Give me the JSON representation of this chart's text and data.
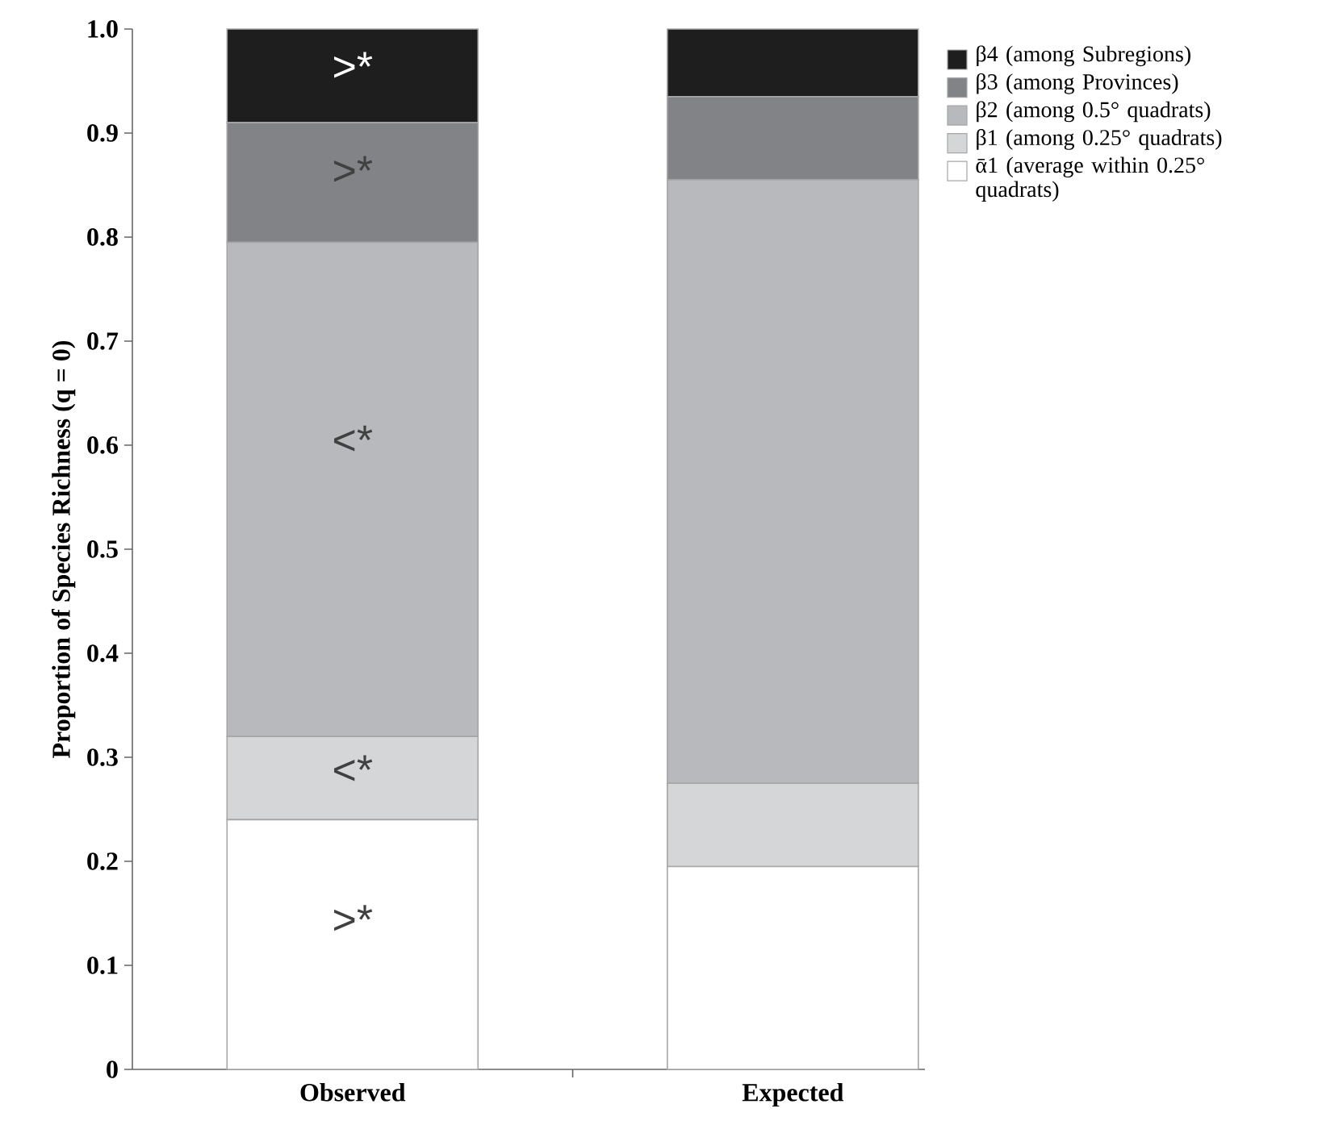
{
  "chart_data": {
    "type": "bar",
    "stacked": true,
    "ylabel": "Proportion of Species Richness (q = 0)",
    "categories": [
      "Observed",
      "Expected"
    ],
    "series": [
      {
        "name": "ᾱ1 (average within 0.25° quadrats)",
        "color": "#ffffff",
        "values": [
          0.24,
          0.195
        ]
      },
      {
        "name": "β1 (among 0.25° quadrats)",
        "color": "#d5d6d8",
        "values": [
          0.08,
          0.08
        ]
      },
      {
        "name": "β2 (among 0.5° quadrats)",
        "color": "#b8b9bc",
        "values": [
          0.475,
          0.58
        ]
      },
      {
        "name": "β3 (among Provinces)",
        "color": "#828386",
        "values": [
          0.115,
          0.08
        ]
      },
      {
        "name": "β4 (among Subregions)",
        "color": "#1e1e1e",
        "values": [
          0.09,
          0.065
        ]
      }
    ],
    "ylim": [
      0,
      1
    ],
    "yticks": [
      0,
      0.1,
      0.2,
      0.3,
      0.4,
      0.5,
      0.6,
      0.7,
      0.8,
      0.9,
      {
        "value": 1,
        "label": "1.0"
      }
    ],
    "legend": "top right",
    "annotations": [
      ">*",
      "<*",
      "<*",
      ">*",
      ">*"
    ]
  }
}
